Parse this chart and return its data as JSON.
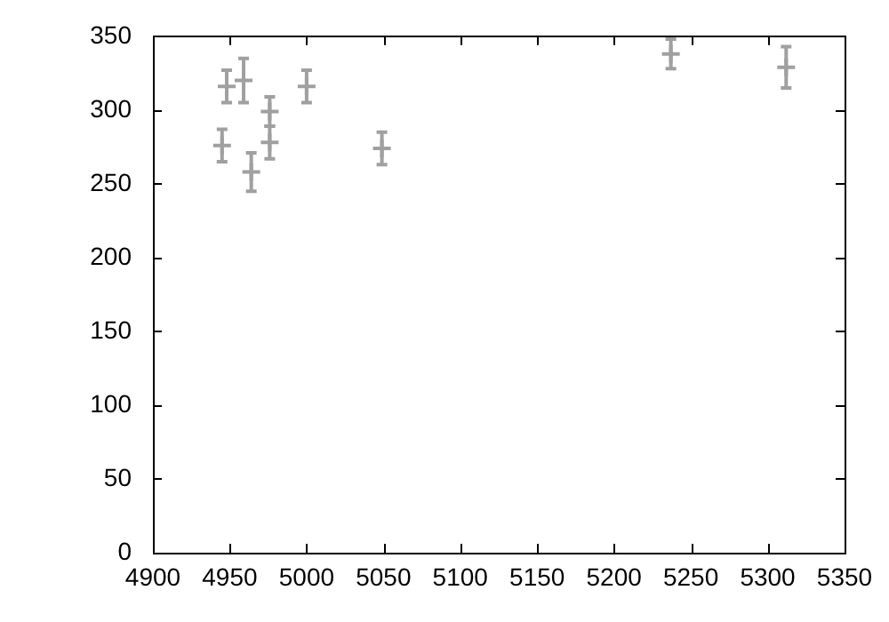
{
  "chart_data": {
    "type": "scatter",
    "marker": "cross",
    "grid": false,
    "x": [
      4945,
      4948,
      4959,
      4964,
      4976,
      4976,
      5000,
      5049,
      5237,
      5312
    ],
    "series": [
      {
        "color": "#a0a0a0",
        "values": [
          276,
          316,
          320,
          258,
          299,
          278,
          316,
          274,
          338,
          329
        ],
        "errors": [
          11,
          11,
          15,
          13,
          10,
          11,
          11,
          11,
          10,
          14
        ]
      }
    ],
    "xlim": [
      4900,
      5350
    ],
    "xticks": [
      4900,
      4950,
      5000,
      5050,
      5100,
      5150,
      5200,
      5250,
      5300,
      5350
    ],
    "ylim": [
      0,
      350
    ],
    "yticks": [
      0,
      50,
      100,
      150,
      200,
      250,
      300,
      350
    ]
  }
}
